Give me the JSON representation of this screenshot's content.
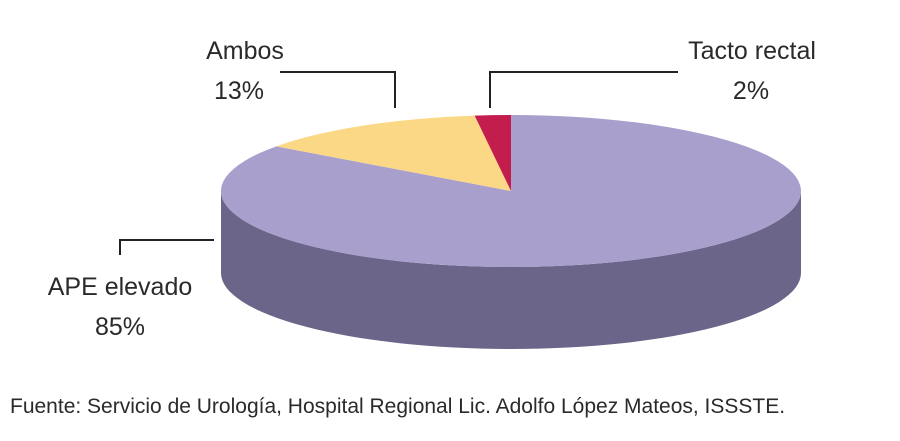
{
  "chart_data": {
    "type": "pie",
    "style": "3d",
    "title": "",
    "slices": [
      {
        "label": "APE elevado",
        "value": 85,
        "value_label": "85%",
        "color": "#a99fcd",
        "side_color": "#6b6589"
      },
      {
        "label": "Ambos",
        "value": 13,
        "value_label": "13%",
        "color": "#fbd886",
        "side_color": "#b89c5e"
      },
      {
        "label": "Tacto rectal",
        "value": 2,
        "value_label": "2%",
        "color": "#c21d4c",
        "side_color": "#7e1332"
      }
    ],
    "source": "Fuente: Servicio de Urología, Hospital Regional Lic. Adolfo López Mateos, ISSSTE."
  }
}
